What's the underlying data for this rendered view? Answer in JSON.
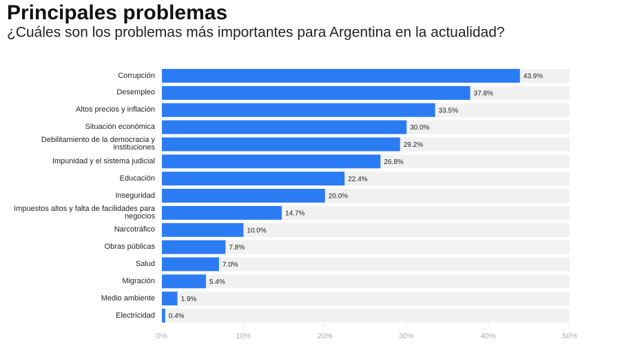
{
  "chart_data": {
    "type": "bar",
    "orientation": "horizontal",
    "title": "Principales problemas",
    "subtitle": "¿Cuáles son los problemas más importantes para Argentina en la actualidad?",
    "categories": [
      "Corrupción",
      "Desempleo",
      "Altos precios y inflación",
      "Situación económica",
      "Debilitamiento de la democracia y instituciones",
      "Impunidad y el sistema judicial",
      "Educación",
      "Inseguridad",
      "Impuestos altos y falta de facilidades para negocios",
      "Narcotráfico",
      "Obras públicas",
      "Salud",
      "Migración",
      "Medio ambiente",
      "Electricidad"
    ],
    "values": [
      43.9,
      37.8,
      33.5,
      30.0,
      29.2,
      26.8,
      22.4,
      20.0,
      14.7,
      10.0,
      7.8,
      7.0,
      5.4,
      1.9,
      0.4
    ],
    "value_labels": [
      "43.9%",
      "37.8%",
      "33.5%",
      "30.0%",
      "29.2%",
      "26.8%",
      "22.4%",
      "20.0%",
      "14.7%",
      "10.0%",
      "7.8%",
      "7.0%",
      "5.4%",
      "1.9%",
      "0.4%"
    ],
    "color": "#2b7bf3",
    "xlim": [
      0,
      50
    ],
    "xticks": [
      {
        "value": 0,
        "label": "0%"
      },
      {
        "value": 10,
        "label": "10%"
      },
      {
        "value": 20,
        "label": "20%"
      },
      {
        "value": 30,
        "label": "30%"
      },
      {
        "value": 40,
        "label": "40%"
      },
      {
        "value": 50,
        "label": "50%"
      }
    ]
  }
}
